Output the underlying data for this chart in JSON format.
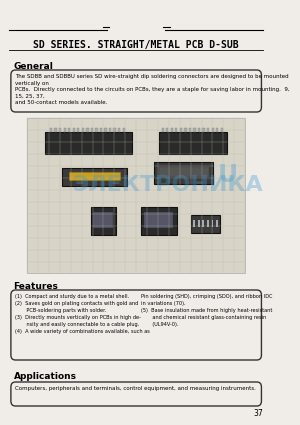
{
  "bg_color": "#f0ede8",
  "title": "SD SERIES. STRAIGHT/METAL PCB D-SUB",
  "title_fontsize": 7.5,
  "title_bold": true,
  "section_general": "General",
  "general_text": "The SDBB and SDBBU series SD wire-straight dip soldering connectors are designed to be mounted vertically on\nPCBs.  Directly connected to the circuits on PCBs, they are a staple for saving labor in mounting.  9, 15, 25, 37,\nand 50-contact models available.",
  "section_features": "Features",
  "features_text_left": "(1)  Compact and sturdy due to a metal shell.\n(2)  Saves gold on plating contacts with gold and\n       PCB-soldering parts with solder.\n(3)  Directly mounts vertically on PCBs in high de-\n       nsity and easily connectable to a cable plug.\n(4)  A wide variety of combinations available, such as",
  "features_text_right": "Pin soldering (SHD), crimping (SDO), and ribbon IDC\nin variations (70).\n(5)  Base insulation made from highly heat-resistant\n       and chemical resistant glass-containing resin\n       (UL94V-0).",
  "section_applications": "Applications",
  "applications_text": "Computers, peripherals and terminals, control equipment, and measuring instruments.",
  "page_number": "37",
  "watermark_text": "ЭЛЕКТРОНИКА",
  "watermark_color": "#4499cc",
  "watermark_alpha": 0.35
}
